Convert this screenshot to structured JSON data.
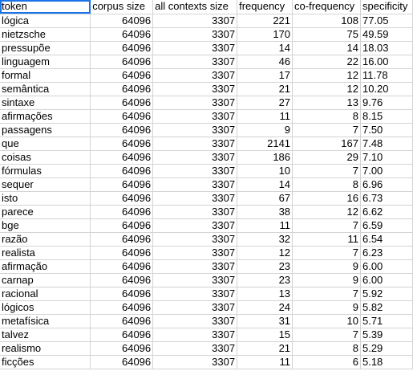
{
  "sheet": {
    "headers": [
      "token",
      "corpus size",
      "all contexts size",
      "frequency",
      "co-frequency",
      "specificity"
    ],
    "rows": [
      [
        "lógica",
        "64096",
        "3307",
        "221",
        "108",
        "77.05"
      ],
      [
        "nietzsche",
        "64096",
        "3307",
        "170",
        "75",
        "49.59"
      ],
      [
        "pressupõe",
        "64096",
        "3307",
        "14",
        "14",
        "18.03"
      ],
      [
        "linguagem",
        "64096",
        "3307",
        "46",
        "22",
        "16.00"
      ],
      [
        "formal",
        "64096",
        "3307",
        "17",
        "12",
        "11.78"
      ],
      [
        "semântica",
        "64096",
        "3307",
        "21",
        "12",
        "10.20"
      ],
      [
        "sintaxe",
        "64096",
        "3307",
        "27",
        "13",
        "9.76"
      ],
      [
        "afirmações",
        "64096",
        "3307",
        "11",
        "8",
        "8.15"
      ],
      [
        "passagens",
        "64096",
        "3307",
        "9",
        "7",
        "7.50"
      ],
      [
        "que",
        "64096",
        "3307",
        "2141",
        "167",
        "7.48"
      ],
      [
        "coisas",
        "64096",
        "3307",
        "186",
        "29",
        "7.10"
      ],
      [
        "fórmulas",
        "64096",
        "3307",
        "10",
        "7",
        "7.00"
      ],
      [
        "sequer",
        "64096",
        "3307",
        "14",
        "8",
        "6.96"
      ],
      [
        "isto",
        "64096",
        "3307",
        "67",
        "16",
        "6.73"
      ],
      [
        "parece",
        "64096",
        "3307",
        "38",
        "12",
        "6.62"
      ],
      [
        "bge",
        "64096",
        "3307",
        "11",
        "7",
        "6.59"
      ],
      [
        "razão",
        "64096",
        "3307",
        "32",
        "11",
        "6.54"
      ],
      [
        "realista",
        "64096",
        "3307",
        "12",
        "7",
        "6.23"
      ],
      [
        "afirmação",
        "64096",
        "3307",
        "23",
        "9",
        "6.00"
      ],
      [
        "carnap",
        "64096",
        "3307",
        "23",
        "9",
        "6.00"
      ],
      [
        "racional",
        "64096",
        "3307",
        "13",
        "7",
        "5.92"
      ],
      [
        "lógicos",
        "64096",
        "3307",
        "24",
        "9",
        "5.82"
      ],
      [
        "metafísica",
        "64096",
        "3307",
        "31",
        "10",
        "5.71"
      ],
      [
        "talvez",
        "64096",
        "3307",
        "15",
        "7",
        "5.39"
      ],
      [
        "realismo",
        "64096",
        "3307",
        "21",
        "8",
        "5.29"
      ],
      [
        "ficções",
        "64096",
        "3307",
        "11",
        "6",
        "5.18"
      ]
    ],
    "column_align": [
      "left",
      "right",
      "right",
      "right",
      "right",
      "left"
    ],
    "selected_cell": "token",
    "colors": {
      "grid": "#d4d4d4",
      "selection": "#1a73e8",
      "text": "#000000"
    }
  }
}
